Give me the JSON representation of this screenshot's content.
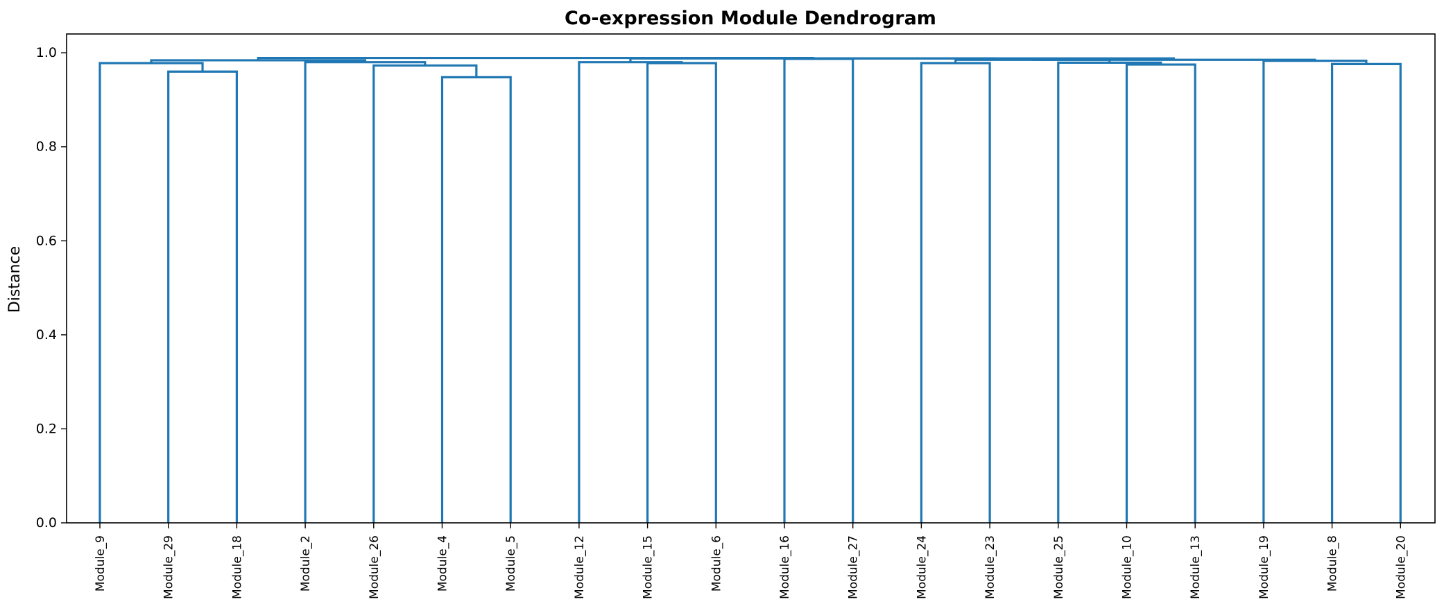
{
  "chart_data": {
    "type": "dendrogram",
    "title": "Co-expression Module Dendrogram",
    "xlabel": "",
    "ylabel": "Distance",
    "ylim": [
      0,
      1.04
    ],
    "yticks": [
      0.0,
      0.2,
      0.4,
      0.6,
      0.8,
      1.0
    ],
    "ytick_labels": [
      "0.0",
      "0.2",
      "0.4",
      "0.6",
      "0.8",
      "1.0"
    ],
    "leaf_order": [
      "Module_9",
      "Module_29",
      "Module_18",
      "Module_2",
      "Module_26",
      "Module_4",
      "Module_5",
      "Module_12",
      "Module_15",
      "Module_6",
      "Module_16",
      "Module_27",
      "Module_24",
      "Module_23",
      "Module_25",
      "Module_10",
      "Module_13",
      "Module_19",
      "Module_8",
      "Module_20"
    ],
    "merges": [
      {
        "left": "Module_4",
        "right": "Module_5",
        "height": 0.948
      },
      {
        "left": "Module_29",
        "right": "Module_18",
        "height": 0.96
      },
      {
        "left": "Module_26",
        "right": "(Module_4, Module_5)",
        "height": 0.973
      },
      {
        "left": "Module_10",
        "right": "Module_13",
        "height": 0.975
      },
      {
        "left": "Module_8",
        "right": "Module_20",
        "height": 0.976
      },
      {
        "left": "Module_9",
        "right": "(Module_29, Module_18)",
        "height": 0.978
      },
      {
        "left": "Module_15",
        "right": "Module_6",
        "height": 0.978
      },
      {
        "left": "Module_24",
        "right": "Module_23",
        "height": 0.978
      },
      {
        "left": "Module_25",
        "right": "(Module_10, Module_13)",
        "height": 0.979
      },
      {
        "left": "Module_2",
        "right": "(Module_26, (Module_4, Module_5))",
        "height": 0.98
      },
      {
        "left": "Module_12",
        "right": "(Module_15, Module_6)",
        "height": 0.98
      },
      {
        "left": "Module_19",
        "right": "(Module_8, Module_20)",
        "height": 0.983
      },
      {
        "left": "(Module_9, ...)",
        "right": "(Module_2, ...)",
        "height": 0.984
      },
      {
        "left": "(Module_24, Module_23)",
        "right": "(Module_25, ...)",
        "height": 0.985
      },
      {
        "left": "(... , Module_19 cluster)",
        "right": "(Module_19, ...)",
        "height": 0.985
      },
      {
        "left": "Module_16",
        "right": "Module_27",
        "height": 0.987
      },
      {
        "left": "(Module_16, Module_27)",
        "right": "(Module_24, ...)",
        "height": 0.988
      },
      {
        "left": "(Module_12, ...)",
        "right": "(Module_16, ...)",
        "height": 0.988
      },
      {
        "left": "(Module_9, ...)",
        "right": "(Module_12, ...)",
        "height": 0.989
      }
    ],
    "color": "#1f77b4",
    "grid": false
  }
}
